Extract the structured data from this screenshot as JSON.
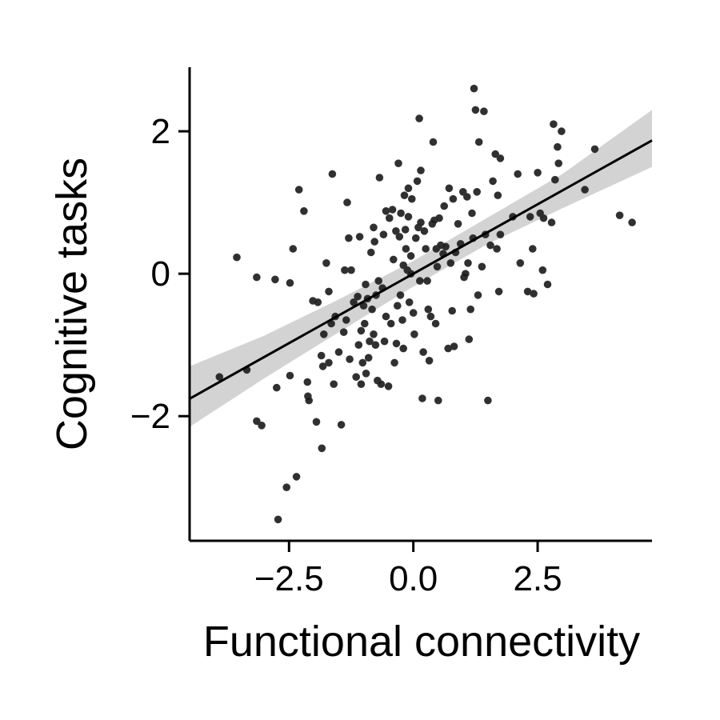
{
  "chart_data": {
    "type": "scatter",
    "title": "",
    "xlabel": "Functional connectivity",
    "ylabel": "Cognitive tasks",
    "xlim": [
      -4.5,
      4.8
    ],
    "ylim": [
      -3.75,
      2.9
    ],
    "xticks": [
      -2.5,
      0.0,
      2.5
    ],
    "xtick_labels": [
      "−2.5",
      "0.0",
      "2.5"
    ],
    "yticks": [
      -2,
      0,
      2
    ],
    "ytick_labels": [
      "−2",
      "0",
      "2"
    ],
    "grid": false,
    "legend": "none",
    "colors": {
      "points": "#1a1a1a",
      "fit_line": "#000000",
      "ci_band": "#d3d3d3"
    },
    "regression": {
      "slope": 0.39,
      "intercept": 0.0
    },
    "confidence_band": {
      "x": [
        -4.5,
        -3.0,
        -1.5,
        0.0,
        1.5,
        3.0,
        4.8
      ],
      "lower": [
        -2.15,
        -1.47,
        -0.82,
        -0.18,
        0.42,
        0.92,
        1.5
      ],
      "upper": [
        -1.3,
        -0.87,
        -0.36,
        0.18,
        0.79,
        1.4,
        2.3
      ]
    },
    "points": [
      [
        -3.9,
        -1.45
      ],
      [
        -3.55,
        0.23
      ],
      [
        -3.35,
        -1.35
      ],
      [
        -3.15,
        -0.05
      ],
      [
        -3.15,
        -2.07
      ],
      [
        -3.05,
        -2.13
      ],
      [
        -2.78,
        -0.08
      ],
      [
        -2.75,
        -1.6
      ],
      [
        -2.72,
        -3.45
      ],
      [
        -2.55,
        -3.0
      ],
      [
        -2.48,
        -1.43
      ],
      [
        -2.48,
        -0.13
      ],
      [
        -2.42,
        0.35
      ],
      [
        -2.35,
        -2.85
      ],
      [
        -2.3,
        1.18
      ],
      [
        -2.2,
        0.88
      ],
      [
        -2.13,
        -1.52
      ],
      [
        -2.12,
        -1.72
      ],
      [
        -2.1,
        -1.78
      ],
      [
        -2.02,
        -0.38
      ],
      [
        -1.95,
        -2.08
      ],
      [
        -1.92,
        -0.4
      ],
      [
        -1.85,
        -1.15
      ],
      [
        -1.84,
        -2.45
      ],
      [
        -1.82,
        -1.3
      ],
      [
        -1.8,
        -0.85
      ],
      [
        -1.75,
        0.15
      ],
      [
        -1.7,
        -0.25
      ],
      [
        -1.7,
        -1.25
      ],
      [
        -1.65,
        -0.7
      ],
      [
        -1.63,
        1.4
      ],
      [
        -1.6,
        -1.55
      ],
      [
        -1.57,
        -0.6
      ],
      [
        -1.5,
        -1.1
      ],
      [
        -1.45,
        -2.12
      ],
      [
        -1.4,
        -0.82
      ],
      [
        -1.38,
        0.05
      ],
      [
        -1.35,
        -0.65
      ],
      [
        -1.33,
        1.0
      ],
      [
        -1.3,
        0.5
      ],
      [
        -1.28,
        -1.2
      ],
      [
        -1.25,
        0.05
      ],
      [
        -1.2,
        -0.4
      ],
      [
        -1.15,
        -1.45
      ],
      [
        -1.12,
        -0.32
      ],
      [
        -1.1,
        -1.0
      ],
      [
        -1.08,
        0.52
      ],
      [
        -1.05,
        -0.8
      ],
      [
        -1.05,
        -1.55
      ],
      [
        -1.02,
        -1.25
      ],
      [
        -1.0,
        -0.45
      ],
      [
        -0.98,
        -0.7
      ],
      [
        -0.96,
        -0.15
      ],
      [
        -0.95,
        -1.4
      ],
      [
        -0.92,
        -0.35
      ],
      [
        -0.9,
        -1.18
      ],
      [
        -0.88,
        -0.95
      ],
      [
        -0.85,
        0.3
      ],
      [
        -0.83,
        -0.5
      ],
      [
        -0.8,
        -0.85
      ],
      [
        -0.8,
        0.65
      ],
      [
        -0.78,
        0.45
      ],
      [
        -0.76,
        -1.0
      ],
      [
        -0.75,
        -0.3
      ],
      [
        -0.72,
        -1.5
      ],
      [
        -0.7,
        -0.1
      ],
      [
        -0.68,
        1.35
      ],
      [
        -0.65,
        -1.55
      ],
      [
        -0.62,
        -0.2
      ],
      [
        -0.6,
        0.55
      ],
      [
        -0.58,
        -0.95
      ],
      [
        -0.55,
        -0.6
      ],
      [
        -0.55,
        0.88
      ],
      [
        -0.5,
        -1.58
      ],
      [
        -0.48,
        0.78
      ],
      [
        -0.45,
        -0.7
      ],
      [
        -0.42,
        0.9
      ],
      [
        -0.4,
        0.2
      ],
      [
        -0.38,
        -1.25
      ],
      [
        -0.35,
        0.6
      ],
      [
        -0.34,
        -0.98
      ],
      [
        -0.32,
        -0.45
      ],
      [
        -0.3,
        1.55
      ],
      [
        -0.28,
        0.52
      ],
      [
        -0.26,
        -0.3
      ],
      [
        -0.25,
        0.85
      ],
      [
        -0.22,
        -0.65
      ],
      [
        -0.2,
        0.12
      ],
      [
        -0.2,
        -1.05
      ],
      [
        -0.18,
        1.1
      ],
      [
        -0.16,
        0.62
      ],
      [
        -0.15,
        0.35
      ],
      [
        -0.12,
        0.05
      ],
      [
        -0.1,
        1.2
      ],
      [
        -0.1,
        0.8
      ],
      [
        -0.08,
        -0.4
      ],
      [
        -0.05,
        0.0
      ],
      [
        -0.05,
        0.25
      ],
      [
        -0.03,
        1.05
      ],
      [
        0.0,
        -0.55
      ],
      [
        0.02,
        -0.85
      ],
      [
        0.05,
        0.5
      ],
      [
        0.08,
        1.3
      ],
      [
        0.1,
        0.65
      ],
      [
        0.12,
        2.18
      ],
      [
        0.13,
        -0.1
      ],
      [
        0.15,
        0.72
      ],
      [
        0.15,
        1.45
      ],
      [
        0.18,
        -1.75
      ],
      [
        0.2,
        -1.1
      ],
      [
        0.22,
        0.6
      ],
      [
        0.25,
        0.35
      ],
      [
        0.28,
        -0.1
      ],
      [
        0.3,
        -0.5
      ],
      [
        0.32,
        -1.22
      ],
      [
        0.35,
        -0.6
      ],
      [
        0.38,
        0.7
      ],
      [
        0.4,
        1.85
      ],
      [
        0.42,
        0.75
      ],
      [
        0.45,
        -0.7
      ],
      [
        0.46,
        0.35
      ],
      [
        0.48,
        0.1
      ],
      [
        0.5,
        -1.78
      ],
      [
        0.52,
        0.78
      ],
      [
        0.55,
        0.4
      ],
      [
        0.6,
        0.28
      ],
      [
        0.62,
        0.95
      ],
      [
        0.65,
        0.38
      ],
      [
        0.7,
        -1.05
      ],
      [
        0.72,
        1.2
      ],
      [
        0.75,
        0.15
      ],
      [
        0.78,
        -0.52
      ],
      [
        0.8,
        1.05
      ],
      [
        0.82,
        -1.02
      ],
      [
        0.85,
        0.3
      ],
      [
        0.9,
        0.7
      ],
      [
        0.95,
        0.42
      ],
      [
        1.0,
        1.15
      ],
      [
        1.02,
        -0.05
      ],
      [
        1.05,
        0.0
      ],
      [
        1.08,
        1.08
      ],
      [
        1.1,
        0.15
      ],
      [
        1.12,
        -0.92
      ],
      [
        1.15,
        -0.5
      ],
      [
        1.18,
        0.85
      ],
      [
        1.2,
        0.5
      ],
      [
        1.22,
        2.6
      ],
      [
        1.25,
        2.3
      ],
      [
        1.28,
        1.15
      ],
      [
        1.3,
        -0.3
      ],
      [
        1.32,
        1.85
      ],
      [
        1.38,
        0.1
      ],
      [
        1.42,
        2.28
      ],
      [
        1.45,
        0.55
      ],
      [
        1.5,
        -1.78
      ],
      [
        1.55,
        0.4
      ],
      [
        1.6,
        1.3
      ],
      [
        1.65,
        1.68
      ],
      [
        1.68,
        0.35
      ],
      [
        1.7,
        1.1
      ],
      [
        1.72,
        -0.25
      ],
      [
        1.75,
        0.55
      ],
      [
        1.75,
        1.62
      ],
      [
        2.0,
        0.8
      ],
      [
        2.1,
        1.4
      ],
      [
        2.15,
        0.15
      ],
      [
        2.3,
        -0.25
      ],
      [
        2.35,
        0.8
      ],
      [
        2.4,
        0.35
      ],
      [
        2.42,
        -0.28
      ],
      [
        2.5,
        1.42
      ],
      [
        2.55,
        0.85
      ],
      [
        2.6,
        0.05
      ],
      [
        2.62,
        0.78
      ],
      [
        2.7,
        -0.15
      ],
      [
        2.78,
        0.72
      ],
      [
        2.82,
        2.1
      ],
      [
        2.85,
        1.32
      ],
      [
        2.9,
        1.78
      ],
      [
        2.92,
        1.55
      ],
      [
        2.98,
        2.0
      ],
      [
        3.45,
        1.18
      ],
      [
        3.65,
        1.75
      ],
      [
        4.15,
        0.82
      ],
      [
        4.4,
        0.72
      ]
    ]
  }
}
